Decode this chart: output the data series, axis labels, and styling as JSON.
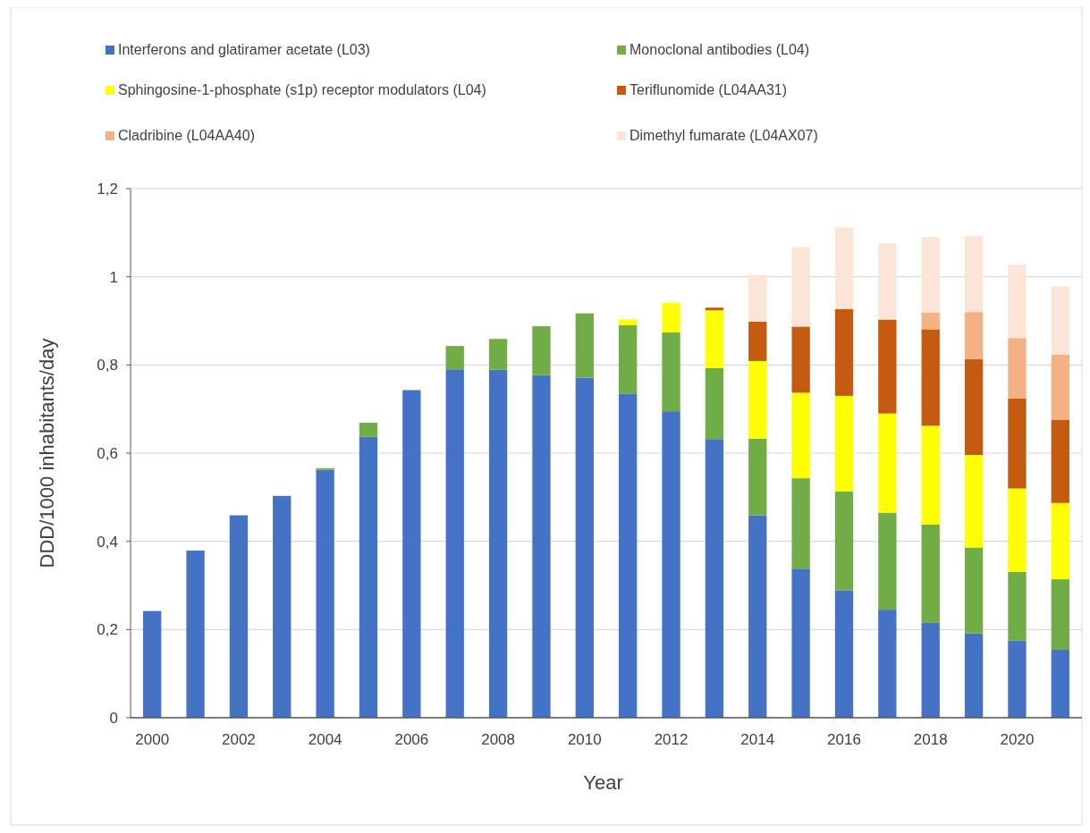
{
  "chart_data": {
    "type": "bar",
    "stacked": true,
    "xlabel": "Year",
    "ylabel": "DDD/1000 inhabitants/day",
    "categories": [
      "2000",
      null,
      "2002",
      null,
      "2004",
      null,
      "2006",
      null,
      "2008",
      null,
      "2010",
      null,
      "2012",
      null,
      "2014",
      null,
      "2016",
      null,
      "2018",
      null,
      "2020",
      null
    ],
    "series": [
      {
        "name": "Interferons and glatiramer acetate (L03)",
        "color": "#4472c4",
        "values": [
          0.242,
          0.379,
          0.459,
          0.503,
          0.562,
          0.637,
          0.743,
          0.79,
          0.789,
          0.777,
          0.771,
          0.735,
          0.695,
          0.632,
          0.459,
          0.338,
          0.289,
          0.245,
          0.215,
          0.191,
          0.175,
          0.154
        ]
      },
      {
        "name": "Monoclonal antibodies (L04)",
        "color": "#70ad47",
        "values": [
          null,
          null,
          null,
          null,
          0.004,
          0.032,
          null,
          0.053,
          0.07,
          0.111,
          0.146,
          0.155,
          0.179,
          0.161,
          0.174,
          0.205,
          0.224,
          0.22,
          0.223,
          0.195,
          0.156,
          0.16
        ]
      },
      {
        "name": "Sphingosine-1-phosphate (s1p) receptor modulators (L04)",
        "color": "#ffff00",
        "values": [
          null,
          null,
          null,
          null,
          null,
          null,
          null,
          null,
          null,
          null,
          null,
          0.013,
          0.067,
          0.131,
          0.176,
          0.194,
          0.217,
          0.225,
          0.224,
          0.21,
          0.189,
          0.173
        ]
      },
      {
        "name": "Teriflunomide (L04AA31)",
        "color": "#c55a11",
        "values": [
          null,
          null,
          null,
          null,
          null,
          null,
          null,
          null,
          null,
          null,
          null,
          null,
          null,
          0.006,
          0.089,
          0.15,
          0.197,
          0.213,
          0.219,
          0.217,
          0.204,
          0.188
        ]
      },
      {
        "name": "Cladribine (L04AA40)",
        "color": "#f4b183",
        "values": [
          null,
          null,
          null,
          null,
          null,
          null,
          null,
          null,
          null,
          null,
          null,
          null,
          null,
          null,
          null,
          null,
          null,
          null,
          0.038,
          0.107,
          0.137,
          0.148
        ]
      },
      {
        "name": "Dimethyl fumarate (L04AX07)",
        "color": "#fbe5d6",
        "values": [
          null,
          null,
          null,
          null,
          null,
          null,
          null,
          null,
          null,
          null,
          null,
          null,
          null,
          null,
          0.106,
          0.18,
          0.185,
          0.173,
          0.171,
          0.172,
          0.166,
          0.155
        ]
      }
    ],
    "ylim": [
      0,
      1.2
    ],
    "yticks": [
      0,
      {
        "value": 0.2,
        "label": "0,2"
      },
      {
        "value": 0.4,
        "label": "0,4"
      },
      {
        "value": 0.6,
        "label": "0,6"
      },
      {
        "value": 0.8,
        "label": "0,8"
      },
      1,
      {
        "value": 1.2,
        "label": "1,2"
      }
    ],
    "grid": "y",
    "legend": "top"
  }
}
